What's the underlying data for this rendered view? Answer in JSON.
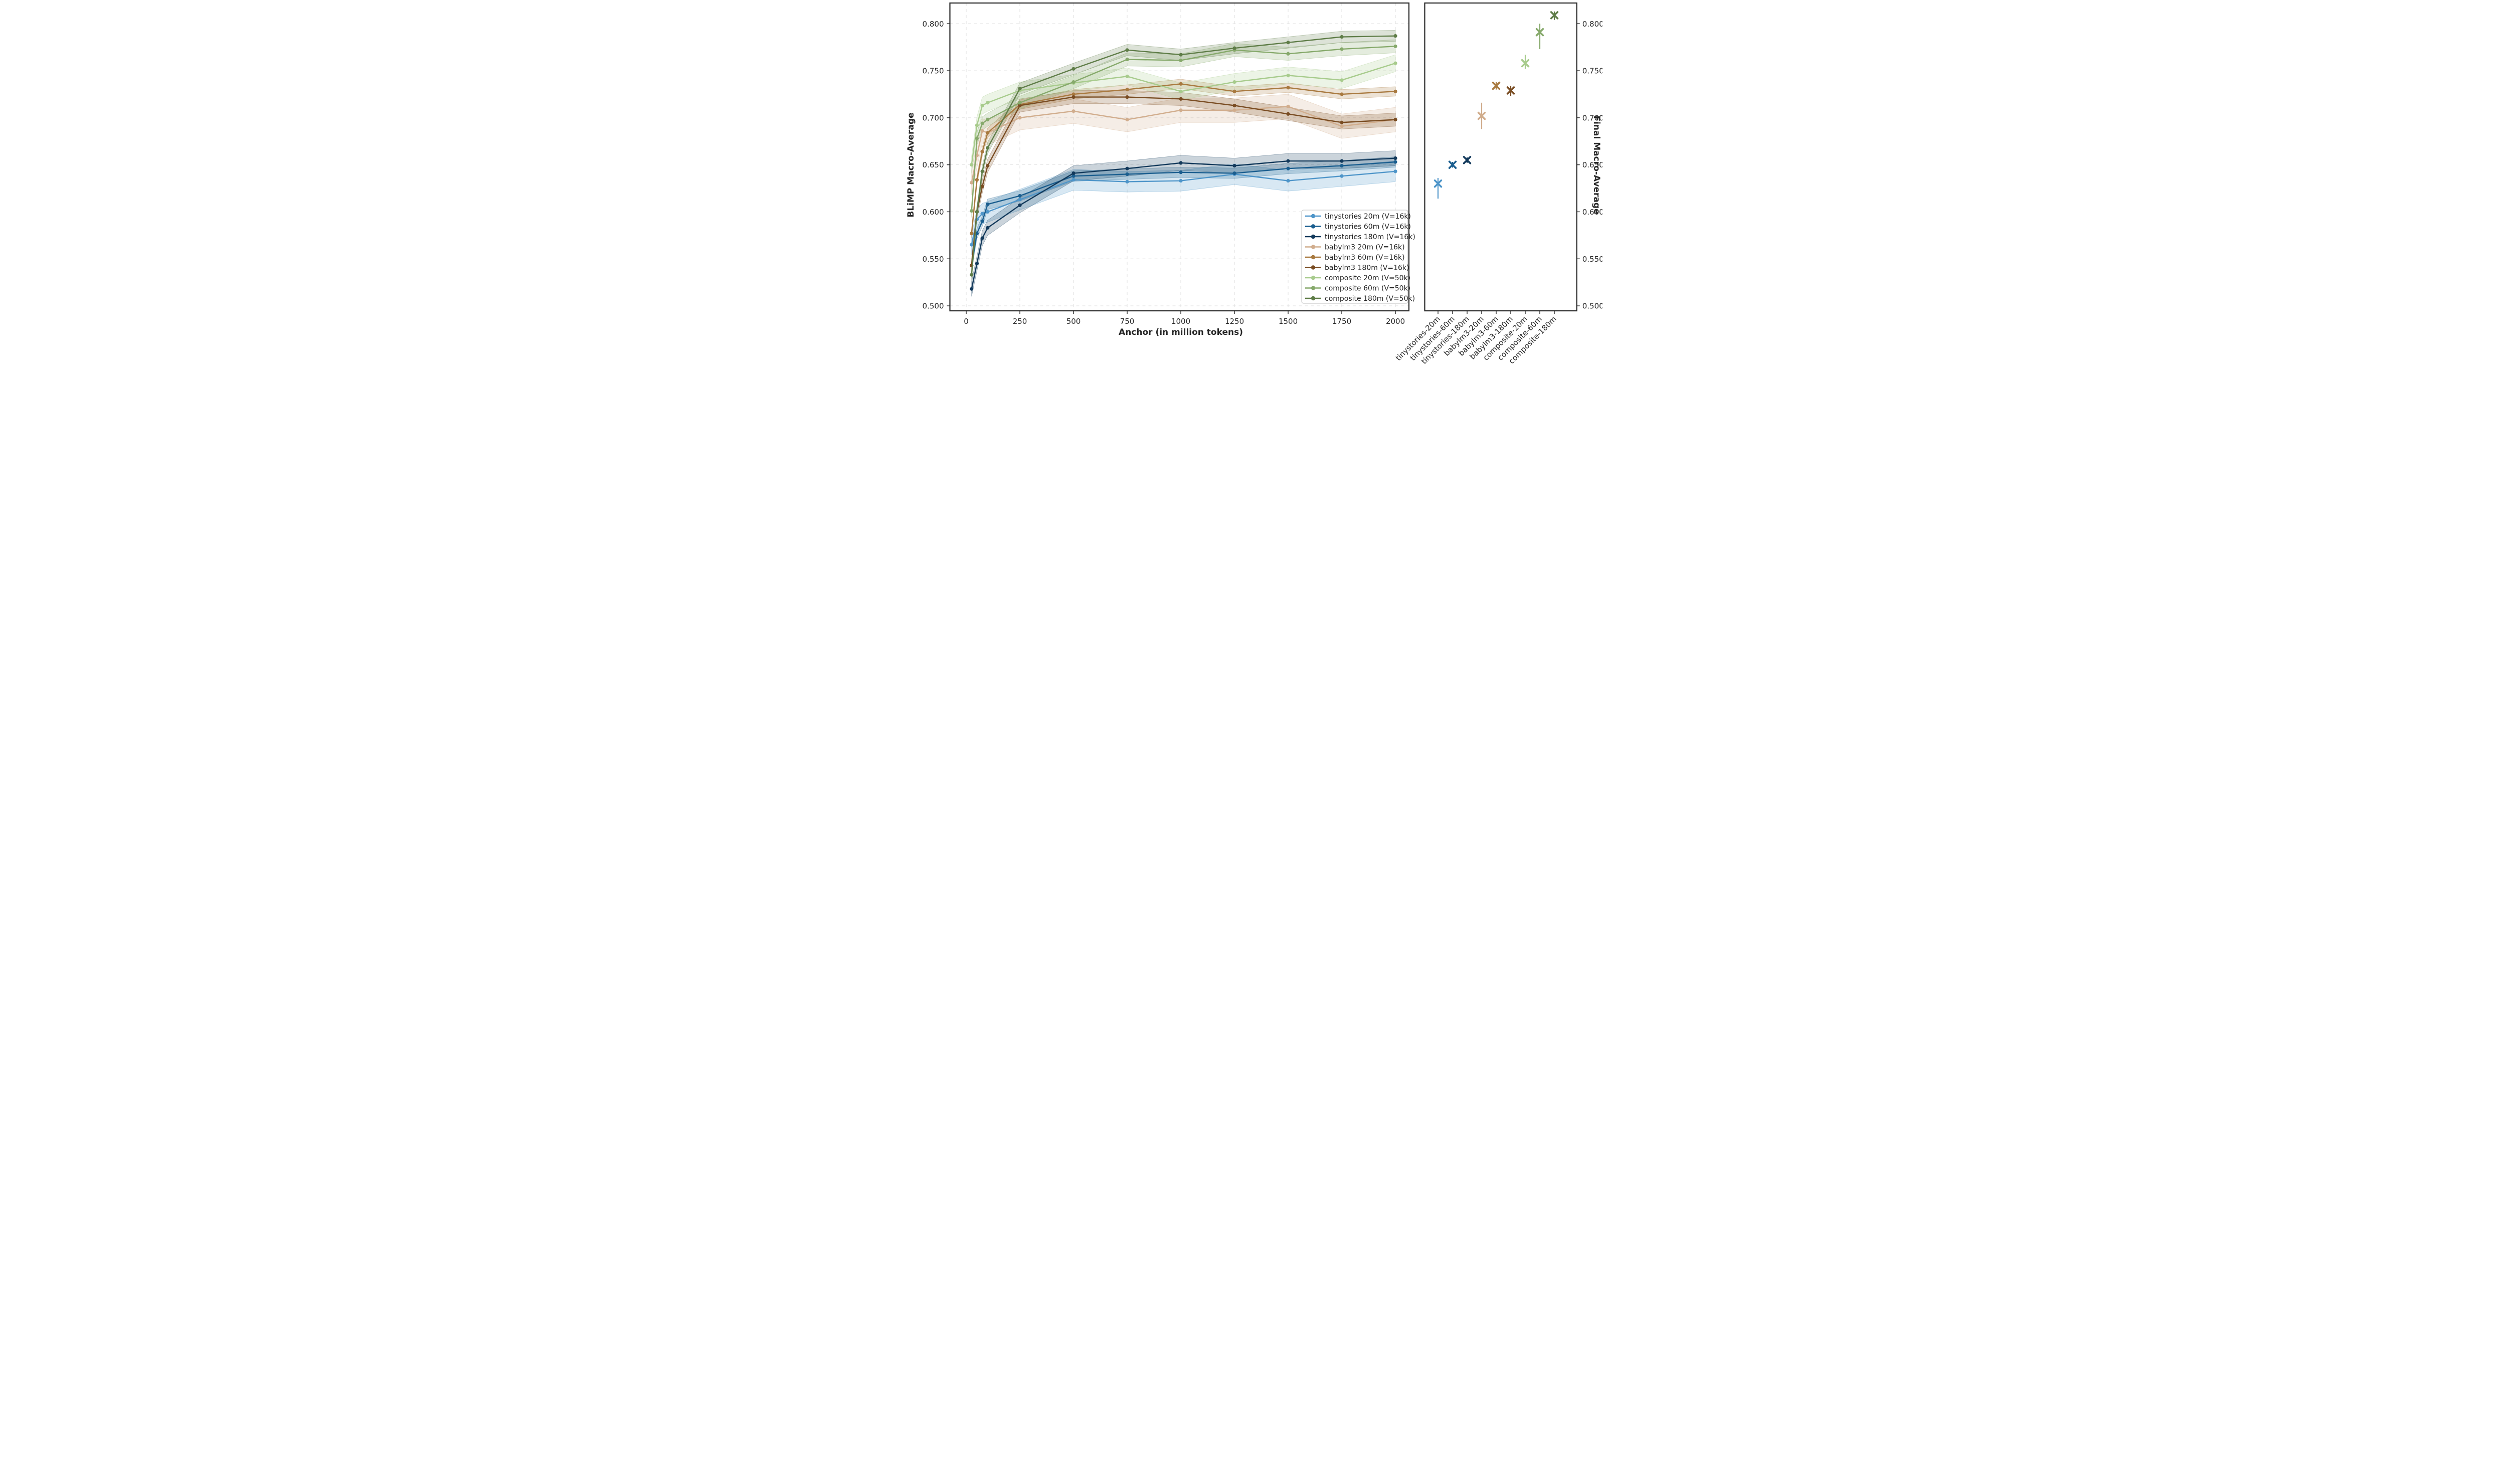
{
  "style": {
    "background": "#ffffff",
    "spine_color": "#262626",
    "grid_color": "#dedede",
    "tick_color": "#262626",
    "text_color": "#262626",
    "legend_border_color": "#cccccc",
    "legend_background": "#ffffff",
    "band_opacity": 0.22
  },
  "chart_data": [
    {
      "type": "line",
      "panel": "left",
      "xlabel": "Anchor (in million tokens)",
      "ylabel": "BLiMP Macro-Average",
      "xlim": [
        -76,
        2063
      ],
      "ylim": [
        0.4947,
        0.822
      ],
      "xticks": [
        0,
        250,
        500,
        750,
        1000,
        1250,
        1500,
        1750,
        2000
      ],
      "yticks": [
        0.5,
        0.55,
        0.6,
        0.65,
        0.7,
        0.75,
        0.8
      ],
      "ytick_labels": [
        "0.500",
        "0.550",
        "0.600",
        "0.650",
        "0.700",
        "0.750",
        "0.800"
      ],
      "grid": true,
      "legend_position": "lower right",
      "x": [
        25,
        50,
        75,
        100,
        250,
        500,
        750,
        1000,
        1250,
        1500,
        1750,
        2000
      ],
      "series": [
        {
          "name": "tinystories-20m",
          "label": "tinystories 20m (V=16k)",
          "color": "#4E95C9",
          "band": 0.011,
          "values": [
            0.565,
            0.592,
            0.598,
            0.6,
            0.613,
            0.634,
            0.632,
            0.633,
            0.64,
            0.633,
            0.638,
            0.643
          ]
        },
        {
          "name": "tinystories-60m",
          "label": "tinystories 60m (V=16k)",
          "color": "#1A5E8F",
          "band": 0.0055,
          "values": [
            0.543,
            0.577,
            0.59,
            0.608,
            0.617,
            0.638,
            0.64,
            0.642,
            0.641,
            0.646,
            0.649,
            0.653
          ]
        },
        {
          "name": "tinystories-180m",
          "label": "tinystories 180m (V=16k)",
          "color": "#12395B",
          "band": 0.008,
          "values": [
            0.518,
            0.545,
            0.572,
            0.583,
            0.607,
            0.641,
            0.646,
            0.652,
            0.649,
            0.654,
            0.654,
            0.657
          ]
        },
        {
          "name": "babylm3-20m",
          "label": "babylm3 20m (V=16k)",
          "color": "#D1AD8D",
          "band": 0.013,
          "values": [
            0.631,
            0.66,
            0.686,
            0.684,
            0.7,
            0.707,
            0.698,
            0.708,
            0.708,
            0.712,
            0.691,
            0.698
          ]
        },
        {
          "name": "babylm3-60m",
          "label": "babylm3 60m (V=16k)",
          "color": "#A8793F",
          "band": 0.005,
          "values": [
            0.577,
            0.634,
            0.664,
            0.684,
            0.714,
            0.725,
            0.73,
            0.736,
            0.728,
            0.732,
            0.725,
            0.728
          ]
        },
        {
          "name": "babylm3-180m",
          "label": "babylm3 180m (V=16k)",
          "color": "#794C22",
          "band": 0.007,
          "values": [
            0.543,
            0.6,
            0.627,
            0.649,
            0.713,
            0.722,
            0.722,
            0.72,
            0.713,
            0.704,
            0.695,
            0.698
          ]
        },
        {
          "name": "composite-20m",
          "label": "composite 20m (V=50k)",
          "color": "#A7CB8C",
          "band": 0.009,
          "values": [
            0.65,
            0.692,
            0.713,
            0.716,
            0.729,
            0.737,
            0.744,
            0.728,
            0.738,
            0.745,
            0.74,
            0.758
          ]
        },
        {
          "name": "composite-60m",
          "label": "composite 60m (V=50k)",
          "color": "#86A96B",
          "band": 0.007,
          "values": [
            0.601,
            0.678,
            0.694,
            0.698,
            0.716,
            0.738,
            0.762,
            0.761,
            0.772,
            0.768,
            0.773,
            0.776
          ]
        },
        {
          "name": "composite-180m",
          "label": "composite 180m (V=50k)",
          "color": "#5F7D48",
          "band": 0.006,
          "values": [
            0.533,
            0.6,
            0.643,
            0.668,
            0.731,
            0.752,
            0.772,
            0.767,
            0.774,
            0.78,
            0.786,
            0.787
          ]
        }
      ]
    },
    {
      "type": "scatter",
      "panel": "right",
      "ylabel": "Final Macro-Average",
      "ylim": [
        0.4947,
        0.822
      ],
      "yticks": [
        0.5,
        0.55,
        0.6,
        0.65,
        0.7,
        0.75,
        0.8
      ],
      "ytick_labels": [
        "0.500",
        "0.550",
        "0.600",
        "0.650",
        "0.700",
        "0.750",
        "0.800"
      ],
      "grid": false,
      "marker": "x",
      "categories": [
        "tinystories-20m",
        "tinystories-60m",
        "tinystories-180m",
        "babylm3-20m",
        "babylm3-60m",
        "babylm3-180m",
        "composite-20m",
        "composite-60m",
        "composite-180m"
      ],
      "values": [
        0.63,
        0.65,
        0.655,
        0.702,
        0.734,
        0.729,
        0.758,
        0.791,
        0.809
      ],
      "err_lo": [
        0.016,
        0.003,
        0.003,
        0.014,
        0.004,
        0.006,
        0.006,
        0.018,
        0.005
      ],
      "err_hi": [
        0.006,
        0.003,
        0.003,
        0.014,
        0.004,
        0.005,
        0.009,
        0.009,
        0.004
      ],
      "colors": [
        "#4E95C9",
        "#1A5E8F",
        "#12395B",
        "#D1AD8D",
        "#A8793F",
        "#794C22",
        "#A7CB8C",
        "#86A96B",
        "#5F7D48"
      ]
    }
  ]
}
